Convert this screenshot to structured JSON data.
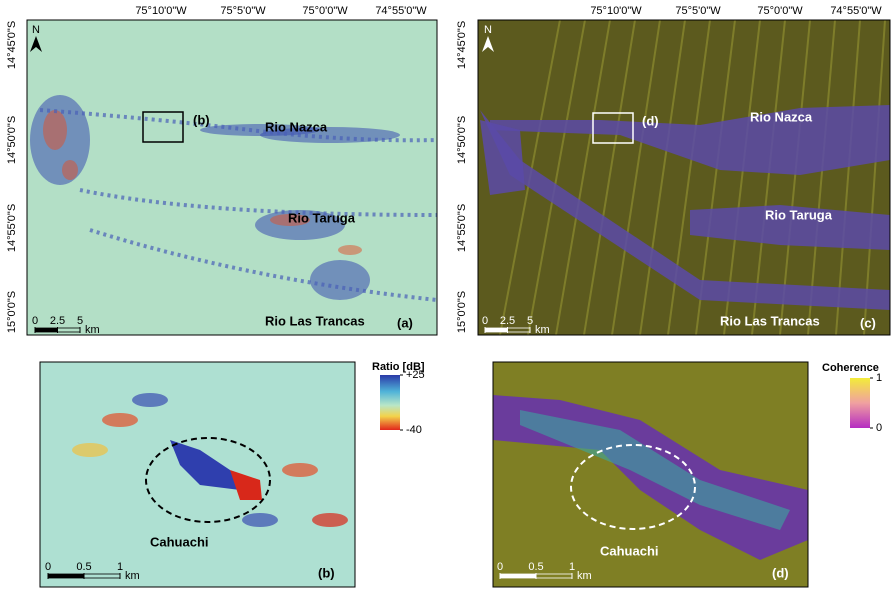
{
  "panels": [
    {
      "panel_label": "(a)",
      "north": "N",
      "inset_label": "(b)",
      "lon_ticks": [
        "75°10'0\"W",
        "75°5'0\"W",
        "75°0'0\"W",
        "74°55'0\"W"
      ],
      "lat_ticks": [
        "14°45'0\"S",
        "14°50'0\"S",
        "14°55'0\"S",
        "15°0'0\"S"
      ],
      "rivers": [
        "Rio Nazca",
        "Rio Taruga",
        "Rio Las Trancas"
      ],
      "scale_bar": {
        "ticks": [
          0,
          2.5,
          5
        ],
        "unit": "km"
      }
    },
    {
      "panel_label": "(c)",
      "north": "N",
      "inset_label": "(d)",
      "lon_ticks": [
        "75°10'0\"W",
        "75°5'0\"W",
        "75°0'0\"W",
        "74°55'0\"W"
      ],
      "lat_ticks": [
        "14°45'0\"S",
        "14°50'0\"S",
        "14°55'0\"S",
        "15°0'0\"S"
      ],
      "rivers": [
        "Rio Nazca",
        "Rio Taruga",
        "Rio Las Trancas"
      ],
      "scale_bar": {
        "ticks": [
          0,
          2.5,
          5
        ],
        "unit": "km"
      }
    },
    {
      "panel_label": "(b)",
      "site": "Cahuachi",
      "scale_bar": {
        "ticks": [
          0,
          0.5,
          1
        ],
        "unit": "km"
      },
      "colorbar": {
        "title": "Ratio [dB]",
        "ticks": [
          {
            "value": 25,
            "label": "+25"
          },
          {
            "value": -40,
            "label": "-40"
          }
        ]
      }
    },
    {
      "panel_label": "(d)",
      "site": "Cahuachi",
      "scale_bar": {
        "ticks": [
          0,
          0.5,
          1
        ],
        "unit": "km"
      },
      "colorbar": {
        "title": "Coherence",
        "ticks": [
          1,
          0
        ]
      }
    }
  ]
}
